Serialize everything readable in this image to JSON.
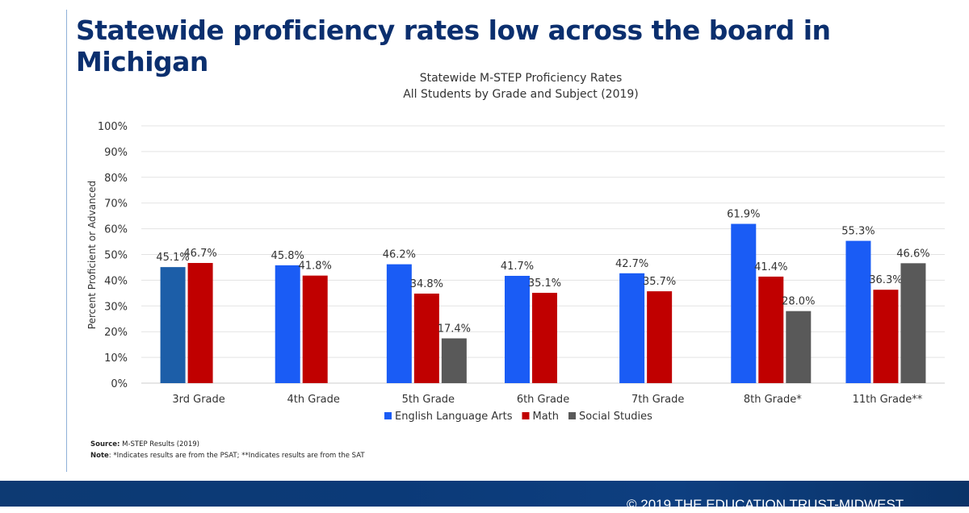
{
  "title": "Statewide proficiency rates low across the board in Michigan",
  "chart_data": {
    "type": "bar",
    "title": "Statewide M-STEP Proficiency Rates",
    "subtitle": "All Students by Grade and Subject (2019)",
    "ylabel": "Percent Proficient or Advanced",
    "xlabel": "",
    "ylim": [
      0,
      100
    ],
    "yticks": [
      "0%",
      "10%",
      "20%",
      "30%",
      "40%",
      "50%",
      "60%",
      "70%",
      "80%",
      "90%",
      "100%"
    ],
    "grid": true,
    "legend": "bottom",
    "categories": [
      "3rd Grade",
      "4th Grade",
      "5th Grade",
      "6th Grade",
      "7th Grade",
      "8th Grade*",
      "11th Grade**"
    ],
    "series": [
      {
        "name": "English Language Arts",
        "color": "#1a5cf5",
        "values": [
          45.1,
          45.8,
          46.2,
          41.7,
          42.7,
          61.9,
          55.3
        ]
      },
      {
        "name": "Math",
        "color": "#c00000",
        "values": [
          46.7,
          41.8,
          34.8,
          35.1,
          35.7,
          41.4,
          36.3
        ]
      },
      {
        "name": "Social Studies",
        "color": "#595959",
        "values": [
          null,
          null,
          17.4,
          null,
          null,
          28.0,
          46.6
        ]
      }
    ],
    "labels": [
      [
        "45.1%",
        "45.8%",
        "46.2%",
        "41.7%",
        "42.7%",
        "61.9%",
        "55.3%"
      ],
      [
        "46.7%",
        "41.8%",
        "34.8%",
        "35.1%",
        "35.7%",
        "41.4%",
        "36.3%"
      ],
      [
        null,
        null,
        "17.4%",
        null,
        null,
        "28.0%",
        "46.6%"
      ]
    ]
  },
  "source_label": "Source:",
  "source_text": " M-STEP Results (2019)",
  "note_label": "Note",
  "note_text": ": *Indicates results are from the PSAT; **Indicates results are from the SAT",
  "footer": "© 2019 THE EDUCATION TRUST-MIDWEST"
}
